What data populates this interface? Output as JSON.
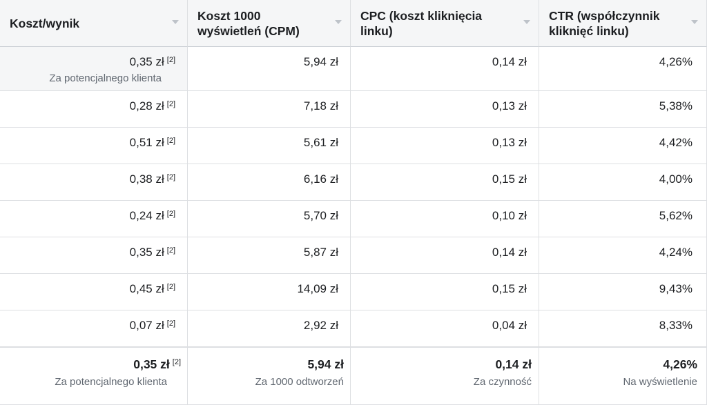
{
  "headers": [
    {
      "label": "Koszt/wynik"
    },
    {
      "label": "Koszt 1000 wyświetleń (CPM)"
    },
    {
      "label": "CPC (koszt kliknięcia linku)"
    },
    {
      "label": "CTR (współczynnik kliknięć linku)"
    }
  ],
  "rows": [
    {
      "cost": "0,35 zł",
      "cost_note": "[2]",
      "cost_sub": "Za potencjalnego klienta",
      "cpm": "5,94 zł",
      "cpc": "0,14 zł",
      "ctr": "4,26%"
    },
    {
      "cost": "0,28 zł",
      "cost_note": "[2]",
      "cpm": "7,18 zł",
      "cpc": "0,13 zł",
      "ctr": "5,38%"
    },
    {
      "cost": "0,51 zł",
      "cost_note": "[2]",
      "cpm": "5,61 zł",
      "cpc": "0,13 zł",
      "ctr": "4,42%"
    },
    {
      "cost": "0,38 zł",
      "cost_note": "[2]",
      "cpm": "6,16 zł",
      "cpc": "0,15 zł",
      "ctr": "4,00%"
    },
    {
      "cost": "0,24 zł",
      "cost_note": "[2]",
      "cpm": "5,70 zł",
      "cpc": "0,10 zł",
      "ctr": "5,62%"
    },
    {
      "cost": "0,35 zł",
      "cost_note": "[2]",
      "cpm": "5,87 zł",
      "cpc": "0,14 zł",
      "ctr": "4,24%"
    },
    {
      "cost": "0,45 zł",
      "cost_note": "[2]",
      "cpm": "14,09 zł",
      "cpc": "0,15 zł",
      "ctr": "9,43%"
    },
    {
      "cost": "0,07 zł",
      "cost_note": "[2]",
      "cpm": "2,92 zł",
      "cpc": "0,04 zł",
      "ctr": "8,33%"
    }
  ],
  "totals": {
    "cost": "0,35 zł",
    "cost_note": "[2]",
    "cost_sub": "Za potencjalnego klienta",
    "cpm": "5,94 zł",
    "cpm_sub": "Za 1000 odtworzeń",
    "cpc": "0,14 zł",
    "cpc_sub": "Za czynność",
    "ctr": "4,26%",
    "ctr_sub": "Na wyświetlenie"
  },
  "colors": {
    "header_bg": "#f5f6f7",
    "border": "#dddfe2",
    "muted_text": "#606770"
  },
  "icons": {
    "sort": "sort-caret-down-icon"
  }
}
